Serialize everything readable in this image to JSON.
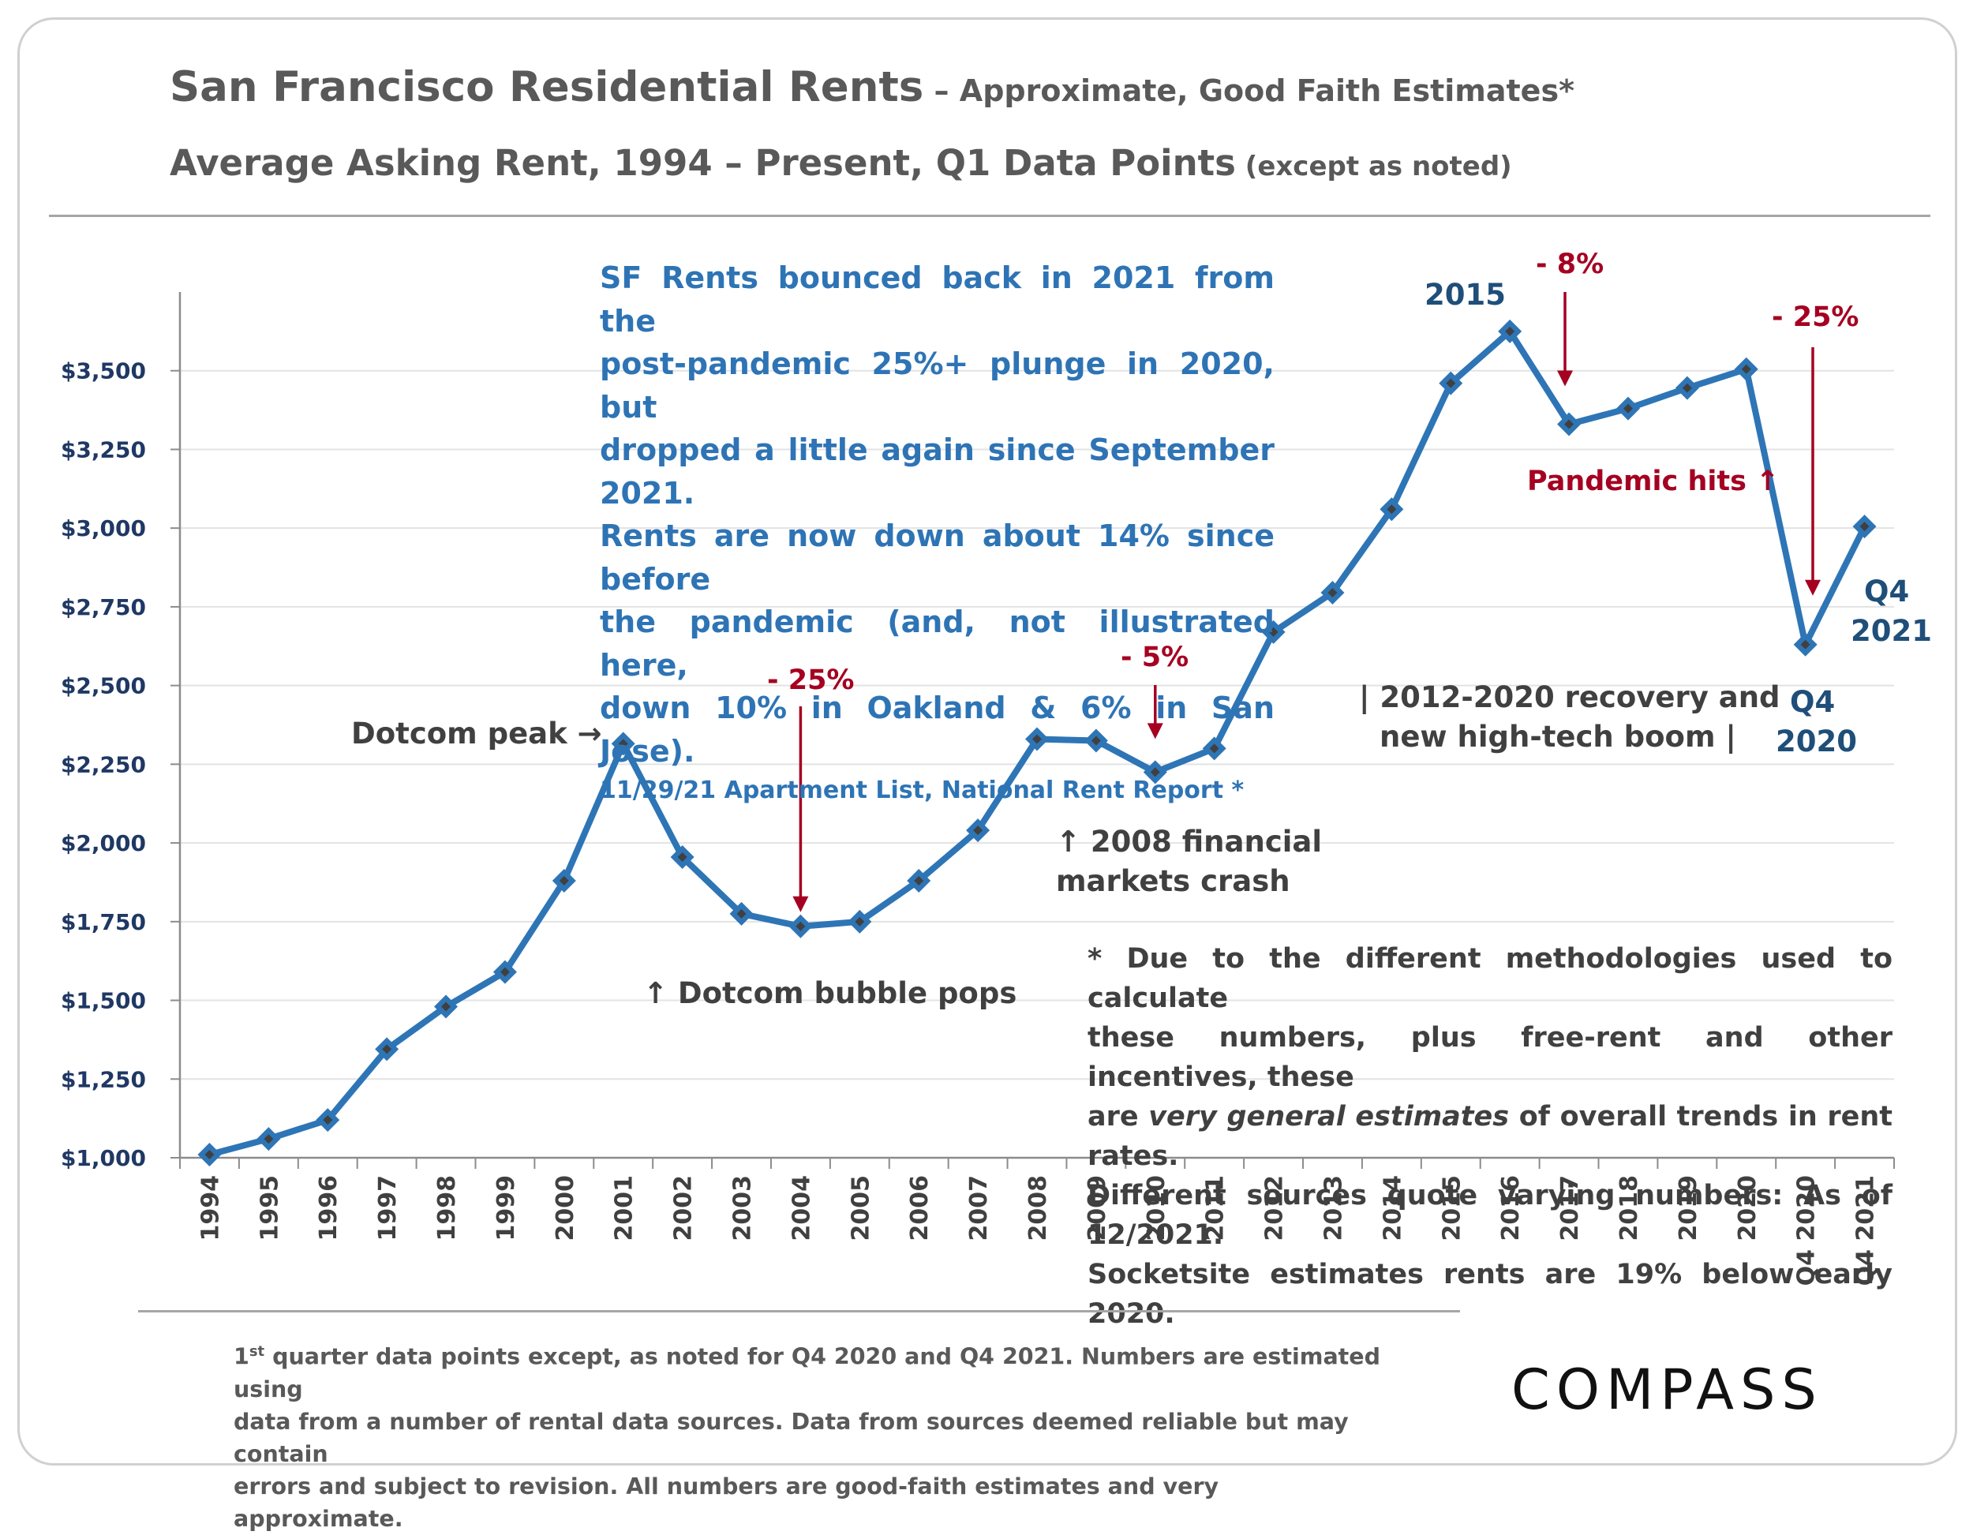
{
  "title": {
    "main": "San Francisco Residential Rents",
    "sub": " – Approximate, Good Faith Estimates*",
    "line2_main": "Average Asking Rent, 1994 – Present, Q1 Data Points",
    "line2_sub": " (except as noted)"
  },
  "callout": {
    "lines": [
      "SF Rents bounced back in 2021 from the",
      "post-pandemic 25%+ plunge in 2020, but",
      "dropped a little again since September 2021.",
      "Rents are now down about 14% since before",
      "the pandemic (and, not illustrated here,",
      "down 10% in Oakland & 6% in San Jose)."
    ],
    "source": "11/29/21 Apartment List, National Rent Report *"
  },
  "annotations": {
    "dotcom_peak": "Dotcom peak →",
    "dotcom_pops": "↑ Dotcom bubble pops",
    "crash_line1": "↑ 2008 financial",
    "crash_line2": "markets crash",
    "recovery_line1": "| 2012-2020 recovery and",
    "recovery_line2": "new high-tech boom |",
    "pandemic_hits": "Pandemic hits ↑",
    "pct_2004": "- 25%",
    "pct_2010": "- 5%",
    "pct_2017": "- 8%",
    "pct_2020": "- 25%",
    "label_2015": "2015",
    "label_q4_2020_a": "Q4",
    "label_q4_2020_b": "2020",
    "label_q4_2021_a": "Q4",
    "label_q4_2021_b": "2021"
  },
  "disclaimer": {
    "lines": [
      "* Due to the different methodologies used to calculate",
      "these numbers, plus free-rent and other incentives, these",
      "Different sources quote varying numbers: As of 12/2021.",
      "Socketsite estimates rents are 19% below early 2020."
    ],
    "line3_pre": "are ",
    "line3_em": "very general estimates",
    "line3_post": " of overall trends in rent rates."
  },
  "footnote": {
    "sup_prefix": "1",
    "sup": "st",
    "line1": " quarter data points except, as noted for Q4 2020 and Q4 2021. Numbers are estimated using",
    "line2": "data from a number of rental data sources. Data from sources deemed reliable but may contain",
    "line3": "errors and subject to revision. All numbers are good-faith estimates and very approximate."
  },
  "logo": "COMPASS",
  "colors": {
    "line": "#2e75b6",
    "marker_fill": "#404040",
    "annotation_red": "#a50021",
    "axis_text": "#1f3864"
  },
  "chart_data": {
    "type": "line",
    "categories": [
      "1994",
      "1995",
      "1996",
      "1997",
      "1998",
      "1999",
      "2000",
      "2001",
      "2002",
      "2003",
      "2004",
      "2005",
      "2006",
      "2007",
      "2008",
      "2009",
      "2010",
      "2011",
      "2012",
      "2013",
      "2014",
      "2015",
      "2016",
      "2017",
      "2018",
      "2019",
      "2020",
      "Q4 2020",
      "Q4 2021"
    ],
    "values": [
      1010,
      1060,
      1120,
      1345,
      1480,
      1590,
      1880,
      2315,
      1955,
      1775,
      1735,
      1750,
      1880,
      2040,
      2330,
      2325,
      2225,
      2300,
      2670,
      2795,
      3060,
      3460,
      3625,
      3330,
      3380,
      3445,
      3505,
      2630,
      3005
    ],
    "yticks": [
      "$1,000",
      "$1,250",
      "$1,500",
      "$1,750",
      "$2,000",
      "$2,250",
      "$2,500",
      "$2,750",
      "$3,000",
      "$3,250",
      "$3,500"
    ],
    "ylim": [
      1000,
      3750
    ],
    "grid": true,
    "legend": "none",
    "title": "San Francisco Residential Rents",
    "xlabel": "",
    "ylabel": ""
  }
}
